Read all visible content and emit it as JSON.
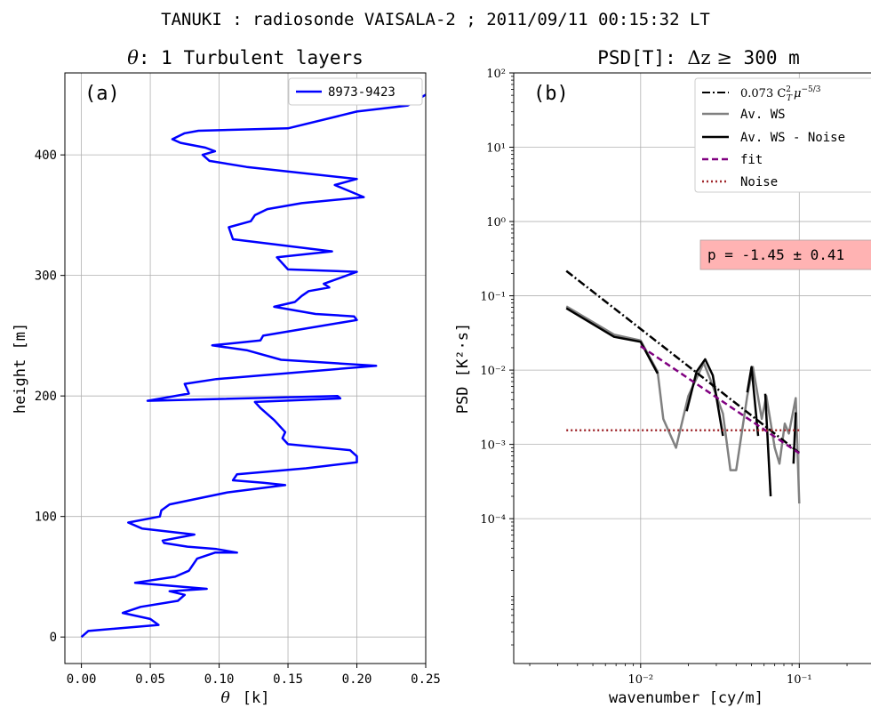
{
  "suptitle": "TANUKI : radiosonde VAISALA-2 ; 2011/09/11   00:15:32 LT",
  "chart_data": [
    {
      "type": "line",
      "panel_label": "(a)",
      "title_symbol": "θ",
      "title_text": ": 1 Turbulent layers",
      "xlabel_symbol": "θ",
      "xlabel_unit": "[k]",
      "ylabel": "height   [m]",
      "xlim": [
        -0.012,
        0.25
      ],
      "ylim": [
        -22,
        468
      ],
      "xticks": [
        0.0,
        0.05,
        0.1,
        0.15,
        0.2,
        0.25
      ],
      "xtick_labels": [
        "0.00",
        "0.05",
        "0.10",
        "0.15",
        "0.20",
        "0.25"
      ],
      "yticks": [
        0,
        100,
        200,
        300,
        400
      ],
      "ytick_labels": [
        "0",
        "100",
        "200",
        "300",
        "400"
      ],
      "grid": true,
      "legend_position": "upper-right",
      "series": [
        {
          "name": "8973-9423",
          "color": "#0000ff",
          "points": [
            [
              0.0,
              0
            ],
            [
              0.005,
              5
            ],
            [
              0.056,
              10
            ],
            [
              0.05,
              15
            ],
            [
              0.03,
              20
            ],
            [
              0.043,
              25
            ],
            [
              0.07,
              30
            ],
            [
              0.075,
              35
            ],
            [
              0.064,
              38
            ],
            [
              0.091,
              40
            ],
            [
              0.039,
              45
            ],
            [
              0.068,
              50
            ],
            [
              0.078,
              55
            ],
            [
              0.084,
              65
            ],
            [
              0.097,
              70
            ],
            [
              0.113,
              70
            ],
            [
              0.098,
              73
            ],
            [
              0.077,
              75
            ],
            [
              0.06,
              78
            ],
            [
              0.059,
              80
            ],
            [
              0.082,
              85
            ],
            [
              0.044,
              90
            ],
            [
              0.034,
              95
            ],
            [
              0.057,
              100
            ],
            [
              0.058,
              105
            ],
            [
              0.064,
              110
            ],
            [
              0.106,
              120
            ],
            [
              0.148,
              126
            ],
            [
              0.132,
              128
            ],
            [
              0.11,
              130
            ],
            [
              0.113,
              135
            ],
            [
              0.163,
              140
            ],
            [
              0.2,
              145
            ],
            [
              0.2,
              150
            ],
            [
              0.195,
              155
            ],
            [
              0.15,
              160
            ],
            [
              0.146,
              165
            ],
            [
              0.148,
              170
            ],
            [
              0.14,
              180
            ],
            [
              0.13,
              190
            ],
            [
              0.126,
              195
            ],
            [
              0.188,
              198
            ],
            [
              0.186,
              200
            ],
            [
              0.048,
              196
            ],
            [
              0.078,
              202
            ],
            [
              0.077,
              205
            ],
            [
              0.075,
              210
            ],
            [
              0.098,
              214
            ],
            [
              0.214,
              225
            ],
            [
              0.145,
              230
            ],
            [
              0.12,
              238
            ],
            [
              0.095,
              242
            ],
            [
              0.13,
              246
            ],
            [
              0.132,
              250
            ],
            [
              0.158,
              255
            ],
            [
              0.2,
              263
            ],
            [
              0.198,
              266
            ],
            [
              0.17,
              268
            ],
            [
              0.14,
              274
            ],
            [
              0.155,
              278
            ],
            [
              0.16,
              283
            ],
            [
              0.165,
              287
            ],
            [
              0.18,
              290
            ],
            [
              0.176,
              293
            ],
            [
              0.2,
              303
            ],
            [
              0.15,
              305
            ],
            [
              0.142,
              315
            ],
            [
              0.182,
              320
            ],
            [
              0.11,
              330
            ],
            [
              0.107,
              340
            ],
            [
              0.123,
              345
            ],
            [
              0.126,
              350
            ],
            [
              0.135,
              355
            ],
            [
              0.16,
              360
            ],
            [
              0.205,
              365
            ],
            [
              0.184,
              375
            ],
            [
              0.2,
              380
            ],
            [
              0.12,
              390
            ],
            [
              0.093,
              395
            ],
            [
              0.088,
              400
            ],
            [
              0.097,
              403
            ],
            [
              0.09,
              406
            ],
            [
              0.072,
              410
            ],
            [
              0.066,
              413
            ],
            [
              0.075,
              418
            ],
            [
              0.085,
              420
            ],
            [
              0.15,
              422
            ],
            [
              0.2,
              436
            ],
            [
              0.237,
              441
            ],
            [
              0.25,
              450
            ]
          ]
        }
      ]
    },
    {
      "type": "line",
      "panel_label": "(b)",
      "title_text": "PSD[T]: ",
      "title_math": "Δz ≥",
      "title_value": " 300 m",
      "xlabel": "wavenumber   [cy/m]",
      "ylabel": "PSD   [K²·s]",
      "x_scale": "log",
      "y_scale": "log",
      "xlim_log10": [
        -2.8,
        -0.6
      ],
      "ylim_log10": [
        -5.95,
        2.0
      ],
      "xtick_labels": [
        "10⁻²",
        "10⁻¹"
      ],
      "ytick_labels": [
        "10⁻⁴",
        "10⁻³",
        "10⁻²",
        "10⁻¹",
        "10⁰",
        "10¹",
        "10²"
      ],
      "grid": true,
      "legend_position": "upper-right",
      "fit_annotation": "p = -1.45 ± 0.41",
      "fit_annotation_bg": "#ffb3b3",
      "legend": [
        {
          "label_prefix": "0.073 C",
          "label_sup": "2",
          "label_sub": "T",
          "label_mu": "μ",
          "label_pow": "−5/3",
          "color": "#000000",
          "style": "dashdot"
        },
        {
          "label": "Av. WS",
          "color": "#808080",
          "style": "solid"
        },
        {
          "label": "Av. WS - Noise",
          "color": "#000000",
          "style": "solid"
        },
        {
          "label": "fit",
          "color": "#800080",
          "style": "dashed"
        },
        {
          "label": "Noise",
          "color": "#a0282d",
          "style": "dotted"
        }
      ],
      "series": [
        {
          "name": "Av. WS",
          "color": "#808080",
          "style": "solid",
          "points": [
            [
              0.0034,
              0.072
            ],
            [
              0.0068,
              0.03
            ],
            [
              0.01,
              0.025
            ],
            [
              0.0128,
              0.0095
            ],
            [
              0.0139,
              0.0022
            ],
            [
              0.0167,
              0.0009
            ],
            [
              0.02,
              0.0045
            ],
            [
              0.025,
              0.0125
            ],
            [
              0.0275,
              0.0075
            ],
            [
              0.033,
              0.0026
            ],
            [
              0.0368,
              0.00045
            ],
            [
              0.04,
              0.00045
            ],
            [
              0.047,
              0.0045
            ],
            [
              0.051,
              0.011
            ],
            [
              0.058,
              0.0022
            ],
            [
              0.062,
              0.0045
            ],
            [
              0.07,
              0.0009
            ],
            [
              0.075,
              0.00055
            ],
            [
              0.081,
              0.0019
            ],
            [
              0.086,
              0.0014
            ],
            [
              0.095,
              0.0042
            ],
            [
              0.1,
              0.00016
            ]
          ]
        },
        {
          "name": "Av. WS - Noise",
          "color": "#000000",
          "style": "solid",
          "segments": [
            [
              [
                0.0034,
                0.068
              ],
              [
                0.0068,
                0.028
              ],
              [
                0.01,
                0.024
              ],
              [
                0.0128,
                0.009
              ]
            ],
            [
              [
                0.0195,
                0.0028
              ],
              [
                0.0225,
                0.0095
              ],
              [
                0.0255,
                0.014
              ],
              [
                0.0285,
                0.0085
              ],
              [
                0.033,
                0.0013
              ]
            ],
            [
              [
                0.047,
                0.005
              ],
              [
                0.05,
                0.011
              ],
              [
                0.055,
                0.0013
              ]
            ],
            [
              [
                0.061,
                0.0048
              ],
              [
                0.066,
                0.0002
              ]
            ],
            [
              [
                0.092,
                0.00055
              ],
              [
                0.095,
                0.0027
              ]
            ]
          ]
        },
        {
          "name": "0.073 C_T^2 mu^-5/3",
          "color": "#000000",
          "style": "dashdot",
          "points": [
            [
              0.0034,
              0.216
            ],
            [
              0.1,
              0.00077
            ]
          ]
        },
        {
          "name": "fit",
          "color": "#800080",
          "style": "dashed",
          "points": [
            [
              0.01,
              0.021
            ],
            [
              0.1,
              0.00076
            ]
          ]
        },
        {
          "name": "Noise",
          "color": "#a0282d",
          "style": "dotted",
          "points": [
            [
              0.0034,
              0.00155
            ],
            [
              0.1,
              0.00155
            ]
          ]
        }
      ]
    }
  ]
}
